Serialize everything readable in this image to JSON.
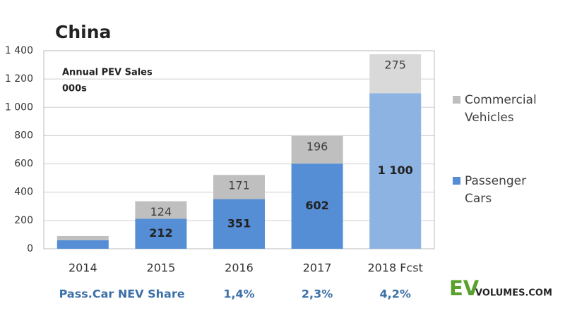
{
  "chart_data": {
    "type": "stacked_bar",
    "title": "China",
    "annotation": [
      "Annual PEV Sales",
      "000s"
    ],
    "categories": [
      "2014",
      "2015",
      "2016",
      "2017",
      "2018 Fcst"
    ],
    "series": [
      {
        "name": "Passenger Cars",
        "color": "#558ed5",
        "colors": [
          "#558ed5",
          "#558ed5",
          "#558ed5",
          "#558ed5",
          "#8db3e2"
        ],
        "values": [
          60,
          212,
          351,
          602,
          1100
        ],
        "value_labels": [
          null,
          "212",
          "351",
          "602",
          "1 100"
        ]
      },
      {
        "name": "Commercial Vehicles",
        "color": "#bfbfbf",
        "colors": [
          "#bfbfbf",
          "#bfbfbf",
          "#bfbfbf",
          "#bfbfbf",
          "#d9d9d9"
        ],
        "values": [
          30,
          124,
          171,
          196,
          275
        ],
        "value_labels": [
          null,
          "124",
          "171",
          "196",
          "275"
        ]
      }
    ],
    "ylim": [
      0,
      1400
    ],
    "yticks": [
      0,
      200,
      400,
      600,
      800,
      {
        "value": 1000,
        "label": "1 000"
      },
      {
        "value": 1200,
        "label": "1 200"
      },
      {
        "value": 1400,
        "label": "1 400"
      }
    ],
    "grid": true,
    "share_row": {
      "label": "Pass.Car NEV Share",
      "values": [
        null,
        null,
        1.4,
        2.3,
        4.2
      ],
      "value_labels": [
        null,
        null,
        "1,4%",
        "2,3%",
        "4,2%"
      ]
    },
    "logo": {
      "mark": "EV",
      "text": "VOLUMES.COM"
    }
  }
}
